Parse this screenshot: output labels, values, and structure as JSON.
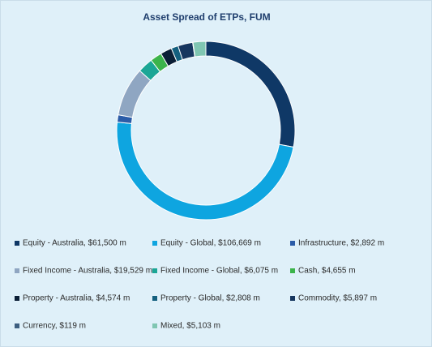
{
  "chart_data": {
    "type": "pie",
    "title": "Asset Spread of ETPs, FUM",
    "categories": [
      "Equity - Australia, $61,500 m",
      "Equity - Global, $106,669 m",
      "Infrastructure, $2,892 m",
      "Fixed Income - Australia, $19,529 m",
      "Fixed Income - Global, $6,075 m",
      "Cash, $4,655 m",
      "Property - Australia, $4,574 m",
      "Property - Global, $2,808 m",
      "Commodity, $5,897 m",
      "Currency, $119 m",
      "Mixed, $5,103 m"
    ],
    "values": [
      61500,
      106669,
      2892,
      19529,
      6075,
      4655,
      4574,
      2808,
      5897,
      119,
      5103
    ],
    "colors": [
      "#0f3866",
      "#0ea5e0",
      "#2b5ca8",
      "#8fa6c2",
      "#1ba696",
      "#3cb44b",
      "#0b1f36",
      "#14607f",
      "#16365f",
      "#3d5f80",
      "#80c6b2"
    ]
  }
}
